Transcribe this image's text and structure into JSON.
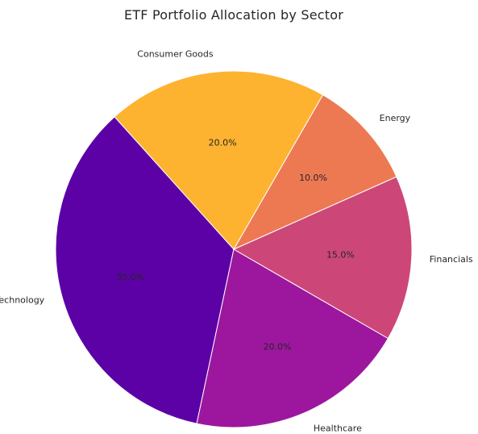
{
  "chart_data": {
    "type": "pie",
    "title": "ETF Portfolio Allocation by Sector",
    "start_angle_deg": 132,
    "direction": "counterclockwise",
    "slices": [
      {
        "label": "Technology",
        "value": 35,
        "pct_label": "35.0%",
        "color": "#5c01a6"
      },
      {
        "label": "Healthcare",
        "value": 20,
        "pct_label": "20.0%",
        "color": "#9c179e"
      },
      {
        "label": "Financials",
        "value": 15,
        "pct_label": "15.0%",
        "color": "#cc4778"
      },
      {
        "label": "Energy",
        "value": 10,
        "pct_label": "10.0%",
        "color": "#ed7953"
      },
      {
        "label": "Consumer Goods",
        "value": 20,
        "pct_label": "20.0%",
        "color": "#fdb32f"
      }
    ]
  }
}
